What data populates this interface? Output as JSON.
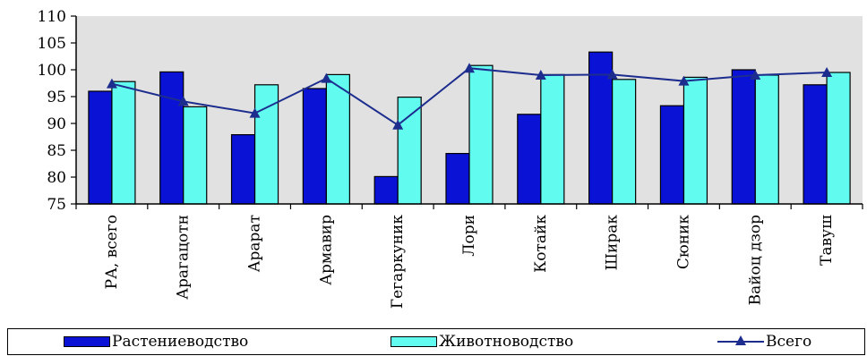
{
  "chart_data": {
    "type": "bar",
    "categories": [
      "РА, всего",
      "Арагацотн",
      "Арарат",
      "Армавир",
      "Гегаркуник",
      "Лори",
      "Котайк",
      "Ширак",
      "Сюник",
      "Вайоц дзор",
      "Тавуш"
    ],
    "series": [
      {
        "name": "Растениеводство",
        "type": "bar",
        "color": "#0a12d6",
        "values": [
          96,
          99.6,
          87.9,
          96.5,
          80.1,
          84.4,
          91.7,
          103.3,
          93.3,
          100,
          97.2
        ]
      },
      {
        "name": "Животноводство",
        "type": "bar",
        "color": "#61fbef",
        "values": [
          97.8,
          93.1,
          97.2,
          99.1,
          94.9,
          100.8,
          99.1,
          98.2,
          98.6,
          99,
          99.5
        ]
      },
      {
        "name": "Всего",
        "type": "line",
        "color": "#1d2d8e",
        "values": [
          97.4,
          94.1,
          91.9,
          98.4,
          89.7,
          100.3,
          99,
          99.1,
          97.9,
          99,
          99.5
        ]
      }
    ],
    "ylim": [
      75,
      110
    ],
    "yticks": [
      75,
      80,
      85,
      90,
      95,
      100,
      105,
      110
    ],
    "plot_background": "#e1e1e1",
    "grid": false,
    "legend_position": "bottom"
  }
}
